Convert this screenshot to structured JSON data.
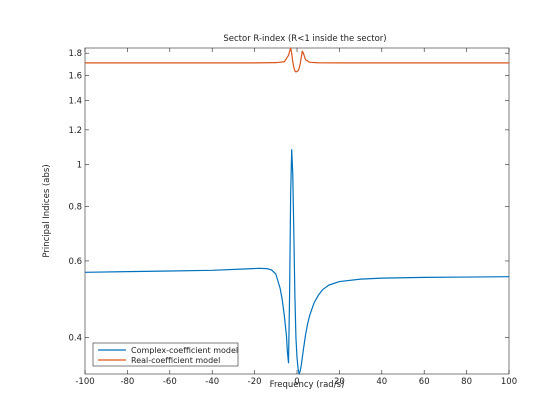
{
  "chart_data": {
    "type": "line",
    "title": "Sector R-index (R<1 inside the sector)",
    "xlabel": "Frequency (rad/s)",
    "ylabel": "Principal Indices (abs)",
    "xlim": [
      -100,
      100
    ],
    "ylim": [
      0.33,
      1.85
    ],
    "yscale": "log",
    "grid": false,
    "legend_position": "bottom-left",
    "x_ticks": [
      -100,
      -80,
      -60,
      -40,
      -20,
      0,
      20,
      40,
      60,
      80,
      100
    ],
    "x_tick_labels": [
      "-100",
      "-80",
      "-60",
      "-40",
      "-20",
      "0",
      "20",
      "40",
      "60",
      "80",
      "100"
    ],
    "y_ticks": [
      0.4,
      0.6,
      0.8,
      1,
      1.2,
      1.4,
      1.6,
      1.8
    ],
    "y_tick_labels": [
      "0.4",
      "0.6",
      "0.8",
      "1",
      "1.2",
      "1.4",
      "1.6",
      "1.8"
    ],
    "series": [
      {
        "name": "Complex-coefficient model",
        "color": "#0072bd",
        "x": [
          -100,
          -80,
          -60,
          -40,
          -25,
          -18,
          -14,
          -12,
          -10,
          -8,
          -7,
          -6,
          -5,
          -4.5,
          -4,
          -3.5,
          -3,
          -2.5,
          -2,
          -1.5,
          -1,
          -0.5,
          0,
          0.5,
          1,
          1.5,
          2,
          2.5,
          3,
          4,
          5,
          6,
          8,
          10,
          12,
          15,
          20,
          30,
          40,
          60,
          80,
          100
        ],
        "y": [
          0.565,
          0.567,
          0.569,
          0.571,
          0.575,
          0.577,
          0.576,
          0.572,
          0.56,
          0.52,
          0.49,
          0.45,
          0.405,
          0.37,
          0.35,
          0.5,
          0.85,
          1.08,
          0.95,
          0.7,
          0.5,
          0.4,
          0.36,
          0.34,
          0.33,
          0.335,
          0.345,
          0.36,
          0.375,
          0.405,
          0.43,
          0.45,
          0.48,
          0.5,
          0.515,
          0.528,
          0.538,
          0.545,
          0.548,
          0.55,
          0.551,
          0.552
        ]
      },
      {
        "name": "Real-coefficient model",
        "color": "#d95319",
        "x": [
          -100,
          -60,
          -20,
          -10,
          -6,
          -4,
          -3,
          -2.5,
          -2,
          -1.5,
          -1,
          -0.5,
          0,
          0.5,
          1,
          1.5,
          2,
          2.5,
          3,
          4,
          6,
          10,
          20,
          60,
          100
        ],
        "y": [
          1.71,
          1.71,
          1.71,
          1.712,
          1.72,
          1.78,
          1.85,
          1.8,
          1.72,
          1.67,
          1.64,
          1.63,
          1.635,
          1.64,
          1.66,
          1.7,
          1.76,
          1.82,
          1.8,
          1.74,
          1.715,
          1.711,
          1.71,
          1.71,
          1.71
        ]
      }
    ]
  }
}
